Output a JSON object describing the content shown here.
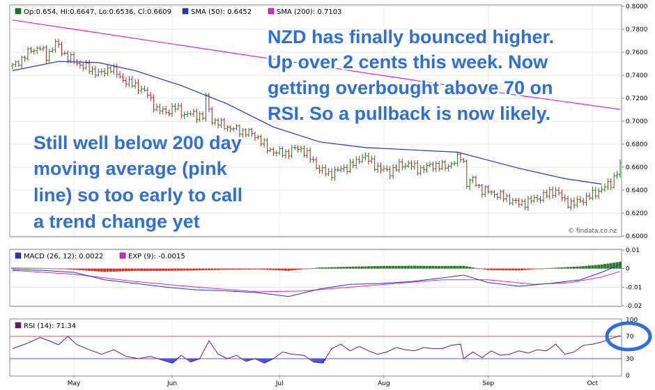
{
  "colors": {
    "up": "#1a7a1a",
    "down": "#b22222",
    "sma50": "#2233cc",
    "sma200": "#dd22dd",
    "macd": "#2233cc",
    "exp": "#dd22dd",
    "hist_pos": "#2a7a2a",
    "hist_neg": "#cc3322",
    "rsi": "#6a1a6a",
    "rsi_fill": "#4455ee",
    "annotation": "#2f6fd8",
    "highlight_circle": "#2f6fd8"
  },
  "credit": "© findata.co.nz",
  "annotations": {
    "right": [
      "NZD has finally bounced higher.",
      "Up over 2 cents this week. Now",
      "getting overbought above 70 on",
      "RSI. So a pullback is now likely."
    ],
    "left": [
      "Still well below 200 day",
      "moving average (pink",
      "line) so too early to call",
      "a trend change yet"
    ]
  },
  "chart_data": [
    {
      "type": "ohlc",
      "legend": [
        {
          "label": "Op:0.654, Hi:0.6647, Lo:0.6536, Cl:0.6609",
          "icon": "square-icon"
        },
        {
          "label": "SMA (50): 0.6452",
          "icon": "square-icon"
        },
        {
          "label": "SMA (200): 0.7103",
          "icon": "square-icon"
        }
      ],
      "ylim": [
        0.6,
        0.8
      ],
      "yticks": [
        "0.8000",
        "0.7800",
        "0.7600",
        "0.7400",
        "0.7200",
        "0.7000",
        "0.6800",
        "0.6600",
        "0.6400",
        "0.6200",
        "0.6000"
      ],
      "close_path": [
        [
          0,
          0.748
        ],
        [
          3,
          0.754
        ],
        [
          6,
          0.762
        ],
        [
          9,
          0.764
        ],
        [
          11,
          0.756
        ],
        [
          14,
          0.768
        ],
        [
          17,
          0.758
        ],
        [
          20,
          0.752
        ],
        [
          23,
          0.748
        ],
        [
          26,
          0.744
        ],
        [
          29,
          0.741
        ],
        [
          32,
          0.747
        ],
        [
          35,
          0.738
        ],
        [
          38,
          0.733
        ],
        [
          41,
          0.73
        ],
        [
          44,
          0.723
        ],
        [
          47,
          0.71
        ],
        [
          50,
          0.708
        ],
        [
          53,
          0.712
        ],
        [
          56,
          0.706
        ],
        [
          59,
          0.706
        ],
        [
          62,
          0.704
        ],
        [
          63,
          0.72
        ],
        [
          65,
          0.701
        ],
        [
          68,
          0.697
        ],
        [
          71,
          0.694
        ],
        [
          74,
          0.692
        ],
        [
          77,
          0.69
        ],
        [
          80,
          0.686
        ],
        [
          83,
          0.676
        ],
        [
          86,
          0.673
        ],
        [
          89,
          0.672
        ],
        [
          92,
          0.676
        ],
        [
          94,
          0.676
        ],
        [
          97,
          0.668
        ],
        [
          100,
          0.658
        ],
        [
          103,
          0.654
        ],
        [
          106,
          0.657
        ],
        [
          109,
          0.66
        ],
        [
          112,
          0.664
        ],
        [
          114,
          0.67
        ],
        [
          117,
          0.664
        ],
        [
          120,
          0.658
        ],
        [
          123,
          0.656
        ],
        [
          126,
          0.661
        ],
        [
          129,
          0.663
        ],
        [
          132,
          0.658
        ],
        [
          135,
          0.66
        ],
        [
          138,
          0.662
        ],
        [
          141,
          0.66
        ],
        [
          144,
          0.665
        ],
        [
          146,
          0.669
        ],
        [
          147,
          0.664
        ],
        [
          148,
          0.646
        ],
        [
          150,
          0.649
        ],
        [
          153,
          0.64
        ],
        [
          156,
          0.638
        ],
        [
          159,
          0.635
        ],
        [
          162,
          0.632
        ],
        [
          165,
          0.628
        ],
        [
          168,
          0.63
        ],
        [
          171,
          0.633
        ],
        [
          174,
          0.636
        ],
        [
          177,
          0.64
        ],
        [
          180,
          0.63
        ],
        [
          183,
          0.628
        ],
        [
          186,
          0.632
        ],
        [
          189,
          0.636
        ],
        [
          192,
          0.641
        ],
        [
          195,
          0.646
        ],
        [
          197,
          0.656
        ],
        [
          198,
          0.6609
        ]
      ],
      "sma50": [
        [
          0,
          0.744
        ],
        [
          15,
          0.752
        ],
        [
          28,
          0.751
        ],
        [
          40,
          0.744
        ],
        [
          55,
          0.731
        ],
        [
          70,
          0.715
        ],
        [
          85,
          0.695
        ],
        [
          100,
          0.682
        ],
        [
          115,
          0.677
        ],
        [
          130,
          0.675
        ],
        [
          145,
          0.673
        ],
        [
          155,
          0.666
        ],
        [
          165,
          0.659
        ],
        [
          180,
          0.65
        ],
        [
          192,
          0.6452
        ]
      ],
      "sma200": [
        [
          0,
          0.788
        ],
        [
          50,
          0.768
        ],
        [
          100,
          0.748
        ],
        [
          150,
          0.728
        ],
        [
          198,
          0.7103
        ]
      ],
      "x_range": [
        0,
        198
      ]
    },
    {
      "type": "macd",
      "legend": [
        {
          "label": "MACD (26, 12): 0.0022",
          "icon": "square-icon"
        },
        {
          "label": "EXP (9): -0.0015",
          "icon": "square-icon"
        }
      ],
      "ylim": [
        -0.02,
        0.01
      ],
      "yticks": [
        "0.01",
        "0",
        "-0.01",
        "-0.02"
      ],
      "macd": [
        [
          0,
          -0.0005
        ],
        [
          10,
          -0.001
        ],
        [
          20,
          -0.002
        ],
        [
          30,
          -0.006
        ],
        [
          40,
          -0.008
        ],
        [
          50,
          -0.01
        ],
        [
          60,
          -0.0115
        ],
        [
          70,
          -0.012
        ],
        [
          80,
          -0.013
        ],
        [
          90,
          -0.015
        ],
        [
          100,
          -0.011
        ],
        [
          110,
          -0.0085
        ],
        [
          120,
          -0.008
        ],
        [
          130,
          -0.007
        ],
        [
          140,
          -0.005
        ],
        [
          147,
          -0.0035
        ],
        [
          155,
          -0.0075
        ],
        [
          165,
          -0.0095
        ],
        [
          175,
          -0.008
        ],
        [
          185,
          -0.006
        ],
        [
          192,
          -0.002
        ],
        [
          198,
          0.0022
        ]
      ],
      "exp": [
        [
          0,
          -0.001
        ],
        [
          20,
          -0.003
        ],
        [
          40,
          -0.007
        ],
        [
          60,
          -0.01
        ],
        [
          80,
          -0.0125
        ],
        [
          95,
          -0.012
        ],
        [
          110,
          -0.01
        ],
        [
          125,
          -0.008
        ],
        [
          140,
          -0.006
        ],
        [
          155,
          -0.006
        ],
        [
          170,
          -0.0085
        ],
        [
          182,
          -0.0075
        ],
        [
          192,
          -0.0045
        ],
        [
          198,
          -0.0015
        ]
      ],
      "hist": [
        [
          0,
          0.0005
        ],
        [
          10,
          0.0003
        ],
        [
          20,
          -0.0006
        ],
        [
          30,
          -0.0018
        ],
        [
          40,
          -0.0012
        ],
        [
          50,
          -0.0012
        ],
        [
          60,
          -0.001
        ],
        [
          70,
          -0.0006
        ],
        [
          80,
          -0.0004
        ],
        [
          90,
          -0.0012
        ],
        [
          100,
          0.0006
        ],
        [
          110,
          0.001
        ],
        [
          120,
          0.0014
        ],
        [
          130,
          0.0015
        ],
        [
          140,
          0.0014
        ],
        [
          147,
          0.0015
        ],
        [
          155,
          -0.0008
        ],
        [
          165,
          -0.001
        ],
        [
          175,
          0.0003
        ],
        [
          185,
          0.0012
        ],
        [
          192,
          0.0022
        ],
        [
          198,
          0.0037
        ]
      ]
    },
    {
      "type": "rsi",
      "legend": [
        {
          "label": "RSI (14): 71.34",
          "icon": "square-icon"
        }
      ],
      "ylim": [
        0,
        100
      ],
      "yticks": [
        "100",
        "70",
        "30",
        "0"
      ],
      "overbought": 70,
      "oversold": 30,
      "rsi": [
        [
          0,
          48
        ],
        [
          5,
          58
        ],
        [
          9,
          68
        ],
        [
          12,
          62
        ],
        [
          15,
          55
        ],
        [
          18,
          70
        ],
        [
          21,
          55
        ],
        [
          25,
          46
        ],
        [
          29,
          38
        ],
        [
          33,
          46
        ],
        [
          37,
          34
        ],
        [
          41,
          30
        ],
        [
          45,
          34
        ],
        [
          49,
          27
        ],
        [
          52,
          22
        ],
        [
          55,
          36
        ],
        [
          58,
          24
        ],
        [
          61,
          30
        ],
        [
          64,
          62
        ],
        [
          67,
          38
        ],
        [
          70,
          30
        ],
        [
          73,
          36
        ],
        [
          76,
          25
        ],
        [
          79,
          30
        ],
        [
          82,
          22
        ],
        [
          85,
          30
        ],
        [
          88,
          42
        ],
        [
          91,
          38
        ],
        [
          95,
          36
        ],
        [
          98,
          24
        ],
        [
          101,
          22
        ],
        [
          104,
          48
        ],
        [
          107,
          56
        ],
        [
          110,
          44
        ],
        [
          113,
          52
        ],
        [
          116,
          44
        ],
        [
          119,
          38
        ],
        [
          122,
          42
        ],
        [
          125,
          50
        ],
        [
          128,
          46
        ],
        [
          131,
          44
        ],
        [
          134,
          50
        ],
        [
          137,
          48
        ],
        [
          140,
          48
        ],
        [
          143,
          54
        ],
        [
          146,
          56
        ],
        [
          147,
          30
        ],
        [
          150,
          42
        ],
        [
          153,
          32
        ],
        [
          156,
          44
        ],
        [
          159,
          36
        ],
        [
          162,
          38
        ],
        [
          165,
          44
        ],
        [
          168,
          40
        ],
        [
          171,
          46
        ],
        [
          174,
          44
        ],
        [
          177,
          56
        ],
        [
          180,
          38
        ],
        [
          183,
          42
        ],
        [
          186,
          54
        ],
        [
          189,
          56
        ],
        [
          192,
          60
        ],
        [
          195,
          66
        ],
        [
          198,
          71.34
        ]
      ],
      "xticks": [
        {
          "label": "May",
          "x": 20
        },
        {
          "label": "Jun",
          "x": 52
        },
        {
          "label": "Jul",
          "x": 87
        },
        {
          "label": "Aug",
          "x": 121
        },
        {
          "label": "Sep",
          "x": 155
        },
        {
          "label": "Oct",
          "x": 189
        }
      ]
    }
  ]
}
